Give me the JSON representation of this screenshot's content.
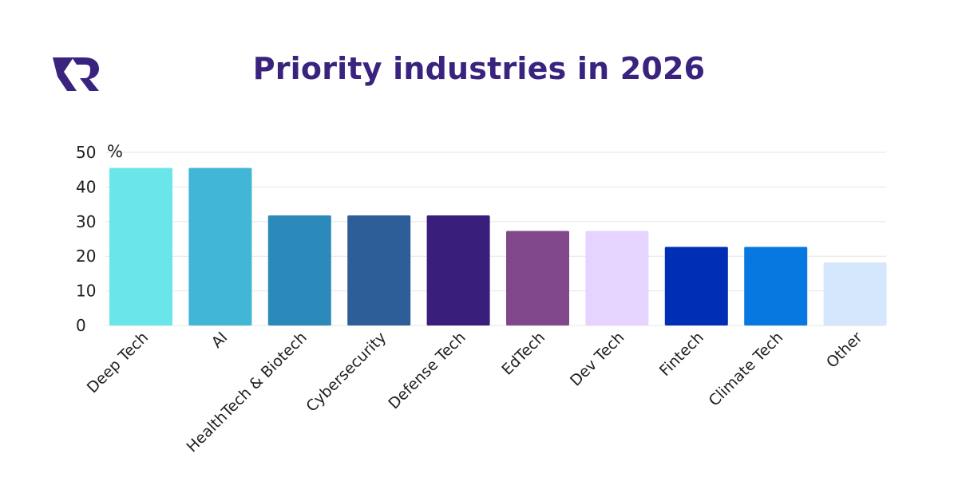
{
  "logo": {
    "icon": "logo-icon",
    "color": "#3a237e"
  },
  "chart_data": {
    "type": "bar",
    "title": "Priority industries in 2026",
    "unit": "%",
    "xlabel": "",
    "ylabel": "",
    "ylim": [
      0,
      50
    ],
    "yticks": [
      "0",
      "10",
      "20",
      "30",
      "40",
      "50"
    ],
    "grid": true,
    "categories": [
      "Deep Tech",
      "AI",
      "HealthTech & Biotech",
      "Cybersecurity",
      "Defense Tech",
      "EdTech",
      "Dev Tech",
      "Fintech",
      "Climate Tech",
      "Other"
    ],
    "values": [
      45.5,
      45.5,
      31.8,
      31.8,
      31.8,
      27.3,
      27.3,
      22.7,
      22.7,
      18.2
    ],
    "colors": [
      "#6ae5ea",
      "#41b6d6",
      "#2c8aba",
      "#2e5e97",
      "#3a1e7c",
      "#80488a",
      "#e5d4ff",
      "#002fb6",
      "#0778e0",
      "#d4e7fc"
    ],
    "title_color": "#3a237e",
    "grid_color": "#e6e6e6"
  }
}
